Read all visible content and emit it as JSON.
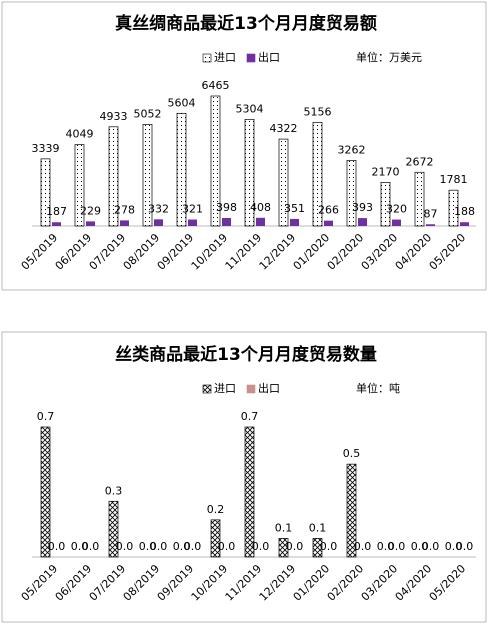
{
  "chart_data": [
    {
      "type": "bar",
      "title": "真丝绸商品最近13个月月度贸易额",
      "unit": "单位：万美元",
      "categories": [
        "05/2019",
        "06/2019",
        "07/2019",
        "08/2019",
        "09/2019",
        "10/2019",
        "11/2019",
        "12/2019",
        "01/2020",
        "02/2020",
        "03/2020",
        "04/2020",
        "05/2020"
      ],
      "series": [
        {
          "name": "进口",
          "color": "#000000",
          "pattern": "dots",
          "values": [
            3339,
            4049,
            4933,
            5052,
            5604,
            6465,
            5304,
            4322,
            5156,
            3262,
            2170,
            2672,
            1781
          ]
        },
        {
          "name": "出口",
          "color": "#7030a0",
          "values": [
            187,
            229,
            278,
            332,
            321,
            398,
            408,
            351,
            266,
            393,
            320,
            87,
            188
          ]
        }
      ]
    },
    {
      "type": "bar",
      "title": "丝类商品最近13个月月度贸易数量",
      "unit": "单位：吨",
      "categories": [
        "05/2019",
        "06/2019",
        "07/2019",
        "08/2019",
        "09/2019",
        "10/2019",
        "11/2019",
        "12/2019",
        "01/2020",
        "02/2020",
        "03/2020",
        "04/2020",
        "05/2020"
      ],
      "series": [
        {
          "name": "进口",
          "color": "#000000",
          "pattern": "crosshatch",
          "values": [
            0.7,
            0,
            0.3,
            0,
            0,
            0.2,
            0.7,
            0.1,
            0.1,
            0.5,
            0,
            0,
            0
          ],
          "value_labels": [
            "0.7",
            "0.0",
            "0.3",
            "0.0",
            "0.0",
            "0.2",
            "0.7",
            "0.1",
            "0.1",
            "0.5",
            "0.0",
            "0.0",
            "0.0"
          ]
        },
        {
          "name": "出口",
          "color": "#c9908c",
          "values": [
            0,
            0,
            0,
            0,
            0,
            0,
            0,
            0,
            0,
            0,
            0,
            0,
            0
          ],
          "value_labels": [
            "0.0",
            "0.0",
            "0.0",
            "0.0",
            "0.0",
            "0.0",
            "0.0",
            "0.0",
            "0.0",
            "0.0",
            "0.0",
            "0.0",
            "0.0"
          ]
        }
      ]
    }
  ]
}
